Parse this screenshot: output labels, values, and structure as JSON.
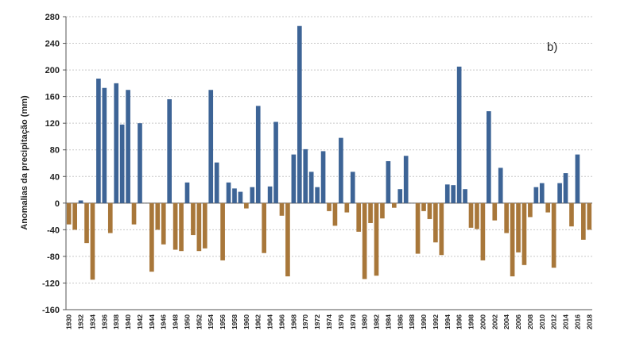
{
  "chart_data": {
    "type": "bar",
    "y_label": "Anomalias da precipitação (mm)",
    "annotation": "b)",
    "categories": [
      "1930",
      null,
      "1932",
      null,
      "1934",
      null,
      "1936",
      null,
      "1938",
      null,
      "1940",
      null,
      "1942",
      null,
      "1944",
      null,
      "1946",
      null,
      "1948",
      null,
      "1950",
      null,
      "1952",
      null,
      "1954",
      null,
      "1956",
      null,
      "1958",
      null,
      "1960",
      null,
      "1962",
      null,
      "1964",
      null,
      "1966",
      null,
      "1968",
      null,
      "1970",
      null,
      "1972",
      null,
      "1974",
      null,
      "1976",
      null,
      "1978",
      null,
      "1980",
      null,
      "1982",
      null,
      "1984",
      null,
      "1986",
      null,
      "1988",
      null,
      "1990",
      null,
      "1992",
      null,
      "1994",
      null,
      "1996",
      null,
      "1998",
      null,
      "2000",
      null,
      "2002",
      null,
      "2004",
      null,
      "2006",
      null,
      "2008",
      null,
      "2010",
      null,
      "2012",
      null,
      "2014",
      null,
      "2016",
      null,
      "2018"
    ],
    "values": [
      -32,
      -40,
      4,
      -60,
      -115,
      187,
      173,
      -45,
      180,
      118,
      170,
      -32,
      120,
      0,
      -103,
      -40,
      -62,
      156,
      -70,
      -72,
      31,
      -48,
      -72,
      -68,
      170,
      61,
      -86,
      31,
      22,
      17,
      -8,
      24,
      146,
      -75,
      25,
      122,
      -19,
      -110,
      73,
      266,
      81,
      47,
      24,
      78,
      -12,
      -34,
      98,
      -14,
      47,
      -43,
      -114,
      -30,
      -109,
      -23,
      63,
      -7,
      21,
      71,
      0,
      -76,
      -12,
      -24,
      -59,
      -78,
      28,
      27,
      205,
      21,
      -37,
      -39,
      -86,
      138,
      -26,
      53,
      -45,
      -110,
      -74,
      -93,
      -21,
      24,
      30,
      -14,
      -97,
      30,
      45,
      -35,
      73,
      -55,
      -40
    ],
    "positive_color": "#3d6496",
    "negative_color": "#a8773a",
    "ylim": [
      -160,
      280
    ],
    "yticks": [
      -160,
      -120,
      -80,
      -40,
      0,
      40,
      80,
      120,
      160,
      200,
      240,
      280
    ],
    "grid": true
  }
}
